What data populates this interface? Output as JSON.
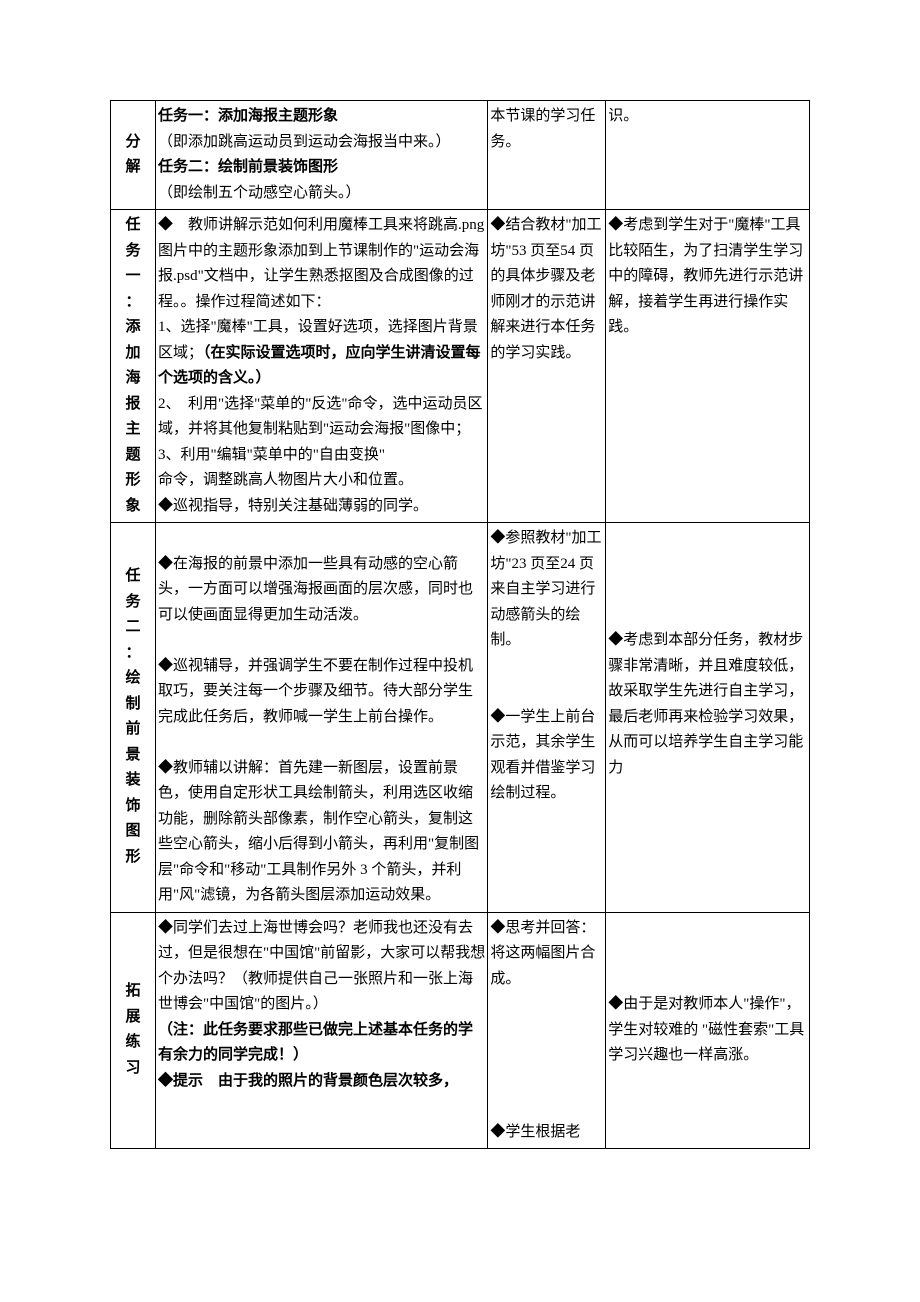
{
  "rows": [
    {
      "label": "分解",
      "teacher_segments": [
        {
          "text": "任务一：添加海报主题形象",
          "bold": true
        },
        {
          "text": "（即添加跳高运动员到运动会海报当中来。）",
          "bold": false
        },
        {
          "text": "任务二：绘制前景装饰图形",
          "bold": true
        },
        {
          "text": "（即绘制五个动感空心箭头。）",
          "bold": false
        }
      ],
      "student": "本节课的学习任务。",
      "design": "识。"
    },
    {
      "label": "任务一：添加海报主题形象",
      "teacher_segments": [
        {
          "text": "◆　教师讲解示范如何利用魔棒工具来将跳高.png 图片中的主题形象添加到上节课制作的\"运动会海报.psd\"文档中，让学生熟悉抠图及合成图像的过程。。操作过程简述如下：",
          "bold": false
        },
        {
          "text": "1、选择\"魔棒\"工具，设置好选项，选择图片背景区域；",
          "bold": false,
          "inline_next": true
        },
        {
          "text": "（在实际设置选项时，应向学生讲清设置每个选项的含义。）",
          "bold": true
        },
        {
          "text": "2、　利用\"选择\"菜单的\"反选\"命令，选中运动员区域，并将其他复制粘贴到\"运动会海报\"图像中；",
          "bold": false
        },
        {
          "text": "3、利用\"编辑\"菜单中的\"自由变换\"",
          "bold": false
        },
        {
          "text": "命令，调整跳高人物图片大小和位置。",
          "bold": false
        },
        {
          "text": "◆巡视指导，特别关注基础薄弱的同学。",
          "bold": false
        }
      ],
      "student": "◆结合教材\"加工坊\"53 页至54 页的具体步骤及老师刚才的示范讲解来进行本任务的学习实践。",
      "design": "◆考虑到学生对于\"魔棒\"工具比较陌生，为了扫清学生学习中的障碍，教师先进行示范讲解，接着学生再进行操作实践。"
    },
    {
      "label": "任务二：绘制前景装饰图形",
      "teacher_segments": [
        {
          "text": "",
          "bold": false
        },
        {
          "text": "◆在海报的前景中添加一些具有动感的空心箭头，一方面可以增强海报画面的层次感，同时也可以使画面显得更加生动活泼。",
          "bold": false
        },
        {
          "text": "",
          "bold": false
        },
        {
          "text": "◆巡视辅导，并强调学生不要在制作过程中投机取巧，要关注每一个步骤及细节。待大部分学生完成此任务后，教师喊一学生上前台操作。",
          "bold": false
        },
        {
          "text": "",
          "bold": false
        },
        {
          "text": "◆教师辅以讲解：首先建一新图层，设置前景色，使用自定形状工具绘制箭头，利用选区收缩功能，删除箭头部像素，制作空心箭头，复制这些空心箭头，缩小后得到小箭头，再利用\"复制图层\"命令和\"移动\"工具制作另外 3 个箭头，并利用\"风\"滤镜，为各箭头图层添加运动效果。",
          "bold": false
        }
      ],
      "student": "◆参照教材\"加工坊\"23 页至24 页来自主学习进行动感箭头的绘制。\n\n\n◆一学生上前台示范，其余学生观看并借鉴学习绘制过程。",
      "design": "\n\n\n\n◆考虑到本部分任务，教材步骤非常清晰，并且难度较低，故采取学生先进行自主学习，最后老师再来检验学习效果，从而可以培养学生自主学习能力"
    },
    {
      "label": "拓展练习",
      "teacher_segments": [
        {
          "text": "◆同学们去过上海世博会吗？老师我也还没有去过，但是很想在\"中国馆\"前留影，大家可以帮我想个办法吗？（教师提供自己一张照片和一张上海世博会\"中国馆\"的图片。）",
          "bold": false
        },
        {
          "text": "（注：此任务要求那些已做完上述基本任务的学有余力的同学完成！）",
          "bold": true
        },
        {
          "text": "◆提示　由于我的照片的背景颜色层次较多，",
          "bold": true
        }
      ],
      "student": "◆思考并回答：将这两幅图片合成。\n\n\n\n\n\n◆学生根据老",
      "design": "\n\n\n◆由于是对教师本人\"操作\"，学生对较难的 \"磁性套索\"工具学习兴趣也一样高涨。"
    }
  ]
}
